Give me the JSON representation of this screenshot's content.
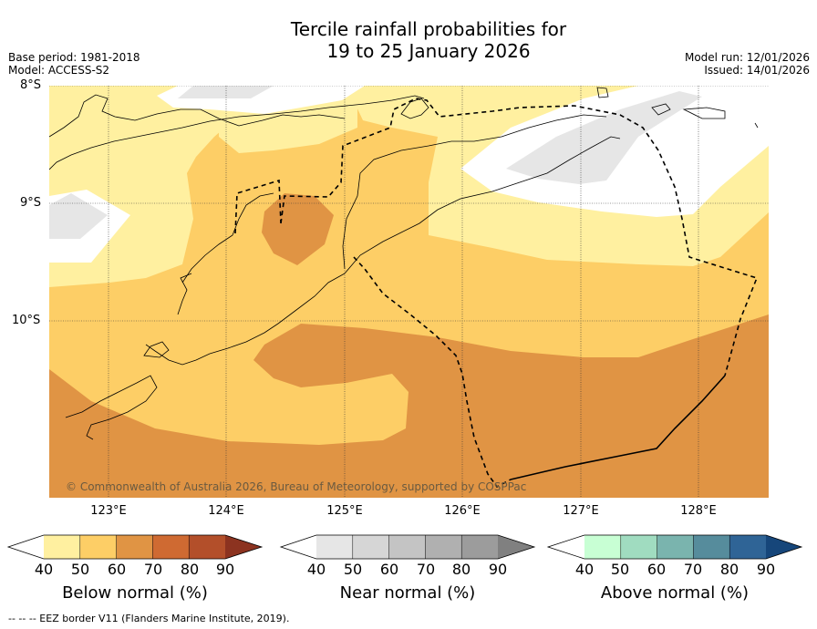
{
  "header": {
    "title_line1": "Tercile rainfall probabilities for",
    "title_line2": "19 to 25 January 2026",
    "base_period": "Base period: 1981-2018",
    "model": "Model: ACCESS-S2",
    "model_run": "Model run: 12/01/2026",
    "issued": "Issued: 14/01/2026"
  },
  "map": {
    "lat_labels": [
      "8°S",
      "9°S",
      "10°S"
    ],
    "lon_labels": [
      "123°E",
      "124°E",
      "125°E",
      "126°E",
      "127°E",
      "128°E"
    ],
    "copyright": "© Commonwealth of Australia 2026, Bureau of Meteorology, supported by COSPPac",
    "category_colors": {
      "below_40_50": "#fff0a0",
      "below_50_60": "#fdce66",
      "below_60_70": "#e09444",
      "near_40_50": "#e6e6e6",
      "no_category": "#ffffff"
    }
  },
  "colorbars": [
    {
      "title": "Below normal (%)",
      "ticks": [
        "40",
        "50",
        "60",
        "70",
        "80",
        "90"
      ],
      "colors": [
        "#ffffff",
        "#fff0a0",
        "#fdce66",
        "#e09444",
        "#cf6a32",
        "#b34f2a",
        "#8c3320"
      ]
    },
    {
      "title": "Near normal (%)",
      "ticks": [
        "40",
        "50",
        "60",
        "70",
        "80",
        "90"
      ],
      "colors": [
        "#ffffff",
        "#e6e6e6",
        "#d6d6d6",
        "#c4c4c4",
        "#b0b0b0",
        "#9c9c9c",
        "#808080"
      ]
    },
    {
      "title": "Above normal (%)",
      "ticks": [
        "40",
        "50",
        "60",
        "70",
        "80",
        "90"
      ],
      "colors": [
        "#ffffff",
        "#c8ffd4",
        "#a0dcc0",
        "#7ab4ae",
        "#568c9c",
        "#2f6496",
        "#16467a"
      ]
    }
  ],
  "footnote": "--  --  -- EEZ border V11 (Flanders Marine Institute, 2019)."
}
